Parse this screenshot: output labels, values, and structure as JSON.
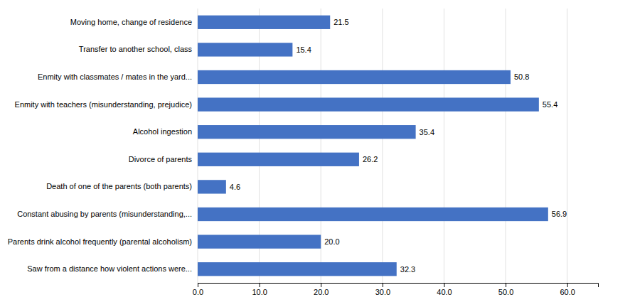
{
  "chart_data": {
    "type": "bar",
    "orientation": "horizontal",
    "categories": [
      "Moving home, change of residence",
      "Transfer to another school, class",
      "Enmity with classmates / mates in the yard...",
      "Enmity with teachers (misunderstanding, prejudice)",
      "Alcohol ingestion",
      "Divorce of parents",
      "Death of one of the parents (both parents)",
      "Constant abusing by parents (misunderstanding,...",
      "Parents drink alcohol frequently (parental alcoholism)",
      "Saw from a distance how violent actions were..."
    ],
    "values": [
      21.5,
      15.4,
      50.8,
      55.4,
      35.4,
      26.2,
      4.6,
      56.9,
      20.0,
      32.3
    ],
    "value_labels": [
      "21.5",
      "15.4",
      "50.8",
      "55.4",
      "35.4",
      "26.2",
      "4.6",
      "56.9",
      "20.0",
      "32.3"
    ],
    "color": "#4472C4",
    "xlim": [
      0,
      65
    ],
    "xticks": [
      {
        "value": 0,
        "label": "0.0"
      },
      {
        "value": 10,
        "label": "10.0"
      },
      {
        "value": 20,
        "label": "20.0"
      },
      {
        "value": 30,
        "label": "30.0"
      },
      {
        "value": 40,
        "label": "40.0"
      },
      {
        "value": 50,
        "label": "50.0"
      },
      {
        "value": 60,
        "label": "60.0"
      }
    ],
    "grid": true,
    "data_labels": true
  }
}
